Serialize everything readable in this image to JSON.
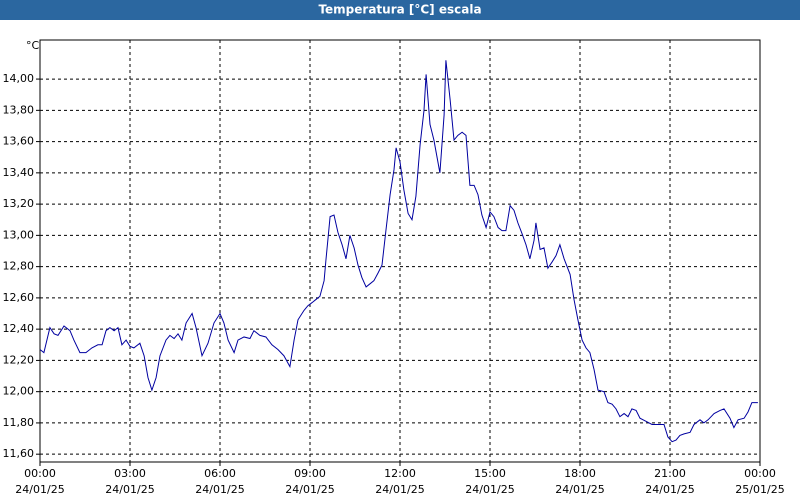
{
  "chart_data": {
    "type": "line",
    "title": "Temperatura [°C] escala",
    "y_unit": "°C",
    "xlim": [
      0,
      24
    ],
    "xticks": [
      {
        "value": 0,
        "label": "00:00",
        "date": "24/01/25"
      },
      {
        "value": 3,
        "label": "03:00",
        "date": "24/01/25"
      },
      {
        "value": 6,
        "label": "06:00",
        "date": "24/01/25"
      },
      {
        "value": 9,
        "label": "09:00",
        "date": "24/01/25"
      },
      {
        "value": 12,
        "label": "12:00",
        "date": "24/01/25"
      },
      {
        "value": 15,
        "label": "15:00",
        "date": "24/01/25"
      },
      {
        "value": 18,
        "label": "18:00",
        "date": "24/01/25"
      },
      {
        "value": 21,
        "label": "21:00",
        "date": "24/01/25"
      },
      {
        "value": 24,
        "label": "00:00",
        "date": "25/01/25"
      }
    ],
    "ylim": [
      11.55,
      14.25
    ],
    "yticks": [
      {
        "value": 11.6,
        "label": "11,60"
      },
      {
        "value": 11.8,
        "label": "11,80"
      },
      {
        "value": 12,
        "label": "12,00"
      },
      {
        "value": 12.2,
        "label": "12,20"
      },
      {
        "value": 12.4,
        "label": "12,40"
      },
      {
        "value": 12.6,
        "label": "12,60"
      },
      {
        "value": 12.8,
        "label": "12,80"
      },
      {
        "value": 13,
        "label": "13,00"
      },
      {
        "value": 13.2,
        "label": "13,20"
      },
      {
        "value": 13.4,
        "label": "13,40"
      },
      {
        "value": 13.6,
        "label": "13,60"
      },
      {
        "value": 13.8,
        "label": "13,80"
      },
      {
        "value": 14,
        "label": "14,00"
      }
    ],
    "grid": true,
    "color": "#0000a0",
    "x": [
      0,
      0.13,
      0.33,
      0.47,
      0.6,
      0.8,
      1,
      1.13,
      1.33,
      1.53,
      1.73,
      1.93,
      2.07,
      2.2,
      2.33,
      2.47,
      2.6,
      2.73,
      2.87,
      3,
      3.13,
      3.33,
      3.47,
      3.6,
      3.73,
      3.87,
      4,
      4.2,
      4.33,
      4.47,
      4.6,
      4.73,
      4.87,
      5.07,
      5.2,
      5.4,
      5.6,
      5.8,
      6,
      6.13,
      6.27,
      6.47,
      6.6,
      6.8,
      7,
      7.13,
      7.33,
      7.53,
      7.73,
      7.93,
      8.13,
      8.33,
      8.47,
      8.6,
      8.8,
      8.93,
      9.07,
      9.2,
      9.33,
      9.47,
      9.53,
      9.67,
      9.8,
      9.93,
      10.07,
      10.2,
      10.33,
      10.47,
      10.6,
      10.73,
      10.87,
      11,
      11.13,
      11.27,
      11.4,
      11.53,
      11.67,
      11.8,
      11.87,
      12,
      12.13,
      12.27,
      12.4,
      12.53,
      12.67,
      12.8,
      12.87,
      13,
      13.13,
      13.33,
      13.47,
      13.53,
      13.67,
      13.8,
      13.93,
      14.07,
      14.2,
      14.33,
      14.47,
      14.6,
      14.73,
      14.87,
      15,
      15.13,
      15.27,
      15.4,
      15.53,
      15.67,
      15.8,
      15.93,
      16.07,
      16.2,
      16.33,
      16.47,
      16.53,
      16.67,
      16.8,
      16.93,
      17.07,
      17.2,
      17.33,
      17.47,
      17.67,
      17.8,
      17.93,
      18.07,
      18.2,
      18.33,
      18.47,
      18.6,
      18.8,
      18.93,
      19.07,
      19.2,
      19.33,
      19.47,
      19.6,
      19.73,
      19.87,
      20,
      20.2,
      20.4,
      20.67,
      20.8,
      20.93,
      21.07,
      21.2,
      21.33,
      21.47,
      21.67,
      21.8,
      22,
      22.13,
      22.27,
      22.47,
      22.67,
      22.8,
      23,
      23.13,
      23.27,
      23.47,
      23.6,
      23.73,
      23.93
    ],
    "values": [
      12.27,
      12.25,
      12.41,
      12.37,
      12.36,
      12.42,
      12.39,
      12.33,
      12.25,
      12.25,
      12.28,
      12.3,
      12.3,
      12.39,
      12.41,
      12.39,
      12.41,
      12.3,
      12.33,
      12.29,
      12.28,
      12.31,
      12.23,
      12.09,
      12.01,
      12.09,
      12.23,
      12.33,
      12.36,
      12.34,
      12.37,
      12.33,
      12.44,
      12.5,
      12.41,
      12.23,
      12.31,
      12.44,
      12.5,
      12.44,
      12.33,
      12.25,
      12.33,
      12.35,
      12.34,
      12.39,
      12.36,
      12.35,
      12.3,
      12.27,
      12.23,
      12.16,
      12.33,
      12.46,
      12.52,
      12.55,
      12.57,
      12.59,
      12.61,
      12.71,
      12.84,
      13.12,
      13.13,
      13.02,
      12.94,
      12.85,
      13.0,
      12.92,
      12.81,
      12.73,
      12.67,
      12.69,
      12.71,
      12.76,
      12.81,
      13.03,
      13.26,
      13.42,
      13.56,
      13.47,
      13.29,
      13.14,
      13.1,
      13.25,
      13.58,
      13.8,
      14.03,
      13.71,
      13.61,
      13.4,
      13.77,
      14.12,
      13.87,
      13.61,
      13.64,
      13.66,
      13.64,
      13.32,
      13.32,
      13.26,
      13.13,
      13.05,
      13.15,
      13.12,
      13.05,
      13.03,
      13.03,
      13.19,
      13.16,
      13.08,
      13.01,
      12.94,
      12.85,
      12.97,
      13.08,
      12.91,
      12.92,
      12.79,
      12.83,
      12.87,
      12.94,
      12.85,
      12.75,
      12.59,
      12.46,
      12.33,
      12.28,
      12.25,
      12.14,
      12.01,
      12.0,
      11.93,
      11.92,
      11.89,
      11.84,
      11.86,
      11.84,
      11.89,
      11.88,
      11.83,
      11.81,
      11.79,
      11.79,
      11.79,
      11.71,
      11.68,
      11.69,
      11.72,
      11.73,
      11.74,
      11.79,
      11.82,
      11.8,
      11.82,
      11.86,
      11.88,
      11.89,
      11.83,
      11.77,
      11.82,
      11.83,
      11.87,
      11.93,
      11.93
    ]
  }
}
